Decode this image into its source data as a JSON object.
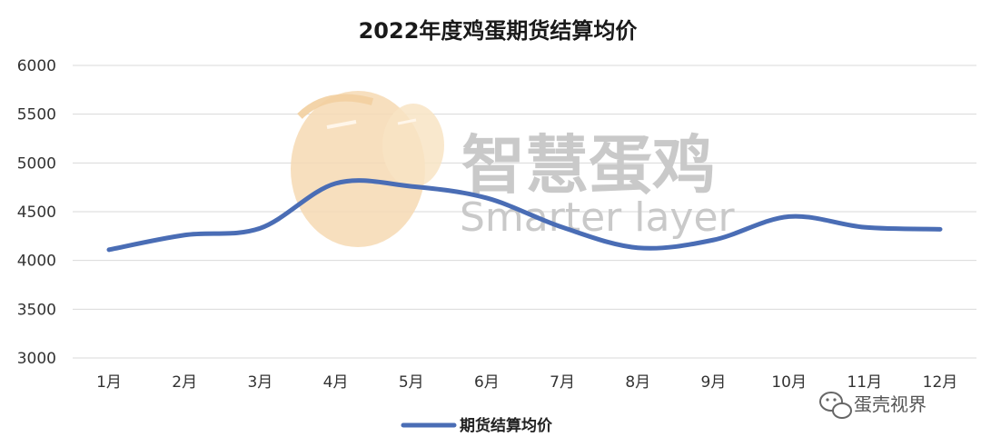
{
  "chart_data": {
    "type": "line",
    "title": "2022年度鸡蛋期货结算均价",
    "categories": [
      "1月",
      "2月",
      "3月",
      "4月",
      "5月",
      "6月",
      "7月",
      "8月",
      "9月",
      "10月",
      "11月",
      "12月"
    ],
    "series": [
      {
        "name": "期货结算均价",
        "values": [
          4110,
          4260,
          4330,
          4790,
          4760,
          4640,
          4340,
          4130,
          4210,
          4450,
          4340,
          4320
        ],
        "color": "#4a6db5"
      }
    ],
    "ylim": [
      3000,
      6000
    ],
    "yticks": [
      "3000",
      "3500",
      "4000",
      "4500",
      "5000",
      "5500",
      "6000"
    ],
    "grid": true,
    "legend_position": "bottom",
    "xlabel": "",
    "ylabel": ""
  },
  "watermark": {
    "cn": "智慧蛋鸡",
    "en": "Smarter layer"
  },
  "corner_badge": {
    "text": "蛋壳视界",
    "icon": "wechat-icon"
  }
}
